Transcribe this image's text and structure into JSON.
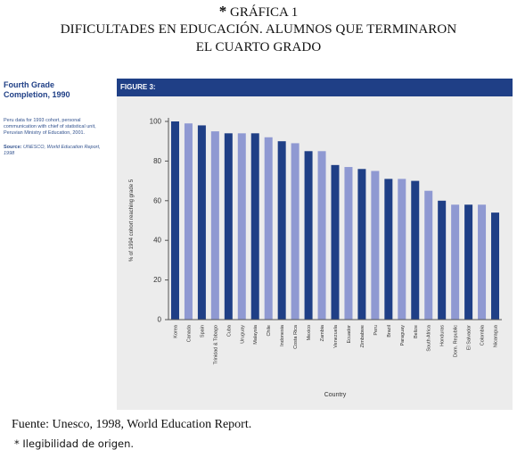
{
  "header": {
    "star": "*",
    "title_line1": "GRÁFICA 1",
    "title_line2": "DIFICULTADES EN EDUCACIÓN. ALUMNOS QUE TERMINARON",
    "title_line3": "EL CUARTO GRADO"
  },
  "side_panel": {
    "title_line1": "Fourth Grade",
    "title_line2": "Completion, 1990",
    "note": "Peru data for 1993 cohort, personal communication with chief of statistical unit, Peruvian Ministry of Education, 2001.",
    "source_label": "Source:",
    "source_text": "UNESCO, World Education Report, 1998"
  },
  "figure_label": "FIGURE 3:",
  "colors": {
    "dark_bar": "#1f3f86",
    "light_bar": "#8f99d2",
    "band": "#1f3f86"
  },
  "chart_data": {
    "type": "bar",
    "xlabel": "Country",
    "ylabel": "% of 1994 cohort reaching grade 5",
    "ylim": [
      0,
      100
    ],
    "yticks": [
      0,
      20,
      40,
      60,
      80,
      100
    ],
    "grid": false,
    "categories": [
      "Korea",
      "Canada",
      "Spain",
      "Trinidad & Tobago",
      "Cuba",
      "Uruguay",
      "Malaysia",
      "Chile",
      "Indonesia",
      "Costa Rica",
      "Mexico",
      "Zambia",
      "Venezuela",
      "Ecuador",
      "Zimbabwe",
      "Peru",
      "Brazil",
      "Paraguay",
      "Belize",
      "South Africa",
      "Honduras",
      "Dom. Republic",
      "El Salvador",
      "Colombia",
      "Nicaragua"
    ],
    "values": [
      100,
      99,
      98,
      95,
      94,
      94,
      94,
      92,
      90,
      89,
      85,
      85,
      78,
      77,
      76,
      75,
      71,
      71,
      70,
      65,
      60,
      58,
      58,
      58,
      54
    ],
    "bar_shades": [
      "dark",
      "light",
      "dark",
      "light",
      "dark",
      "light",
      "dark",
      "light",
      "dark",
      "light",
      "dark",
      "light",
      "dark",
      "light",
      "dark",
      "light",
      "dark",
      "light",
      "dark",
      "light",
      "dark",
      "light",
      "dark",
      "light",
      "dark"
    ]
  },
  "source_line": "Fuente: Unesco, 1998, World Education Report.",
  "footnote": "* Ilegibilidad de origen."
}
